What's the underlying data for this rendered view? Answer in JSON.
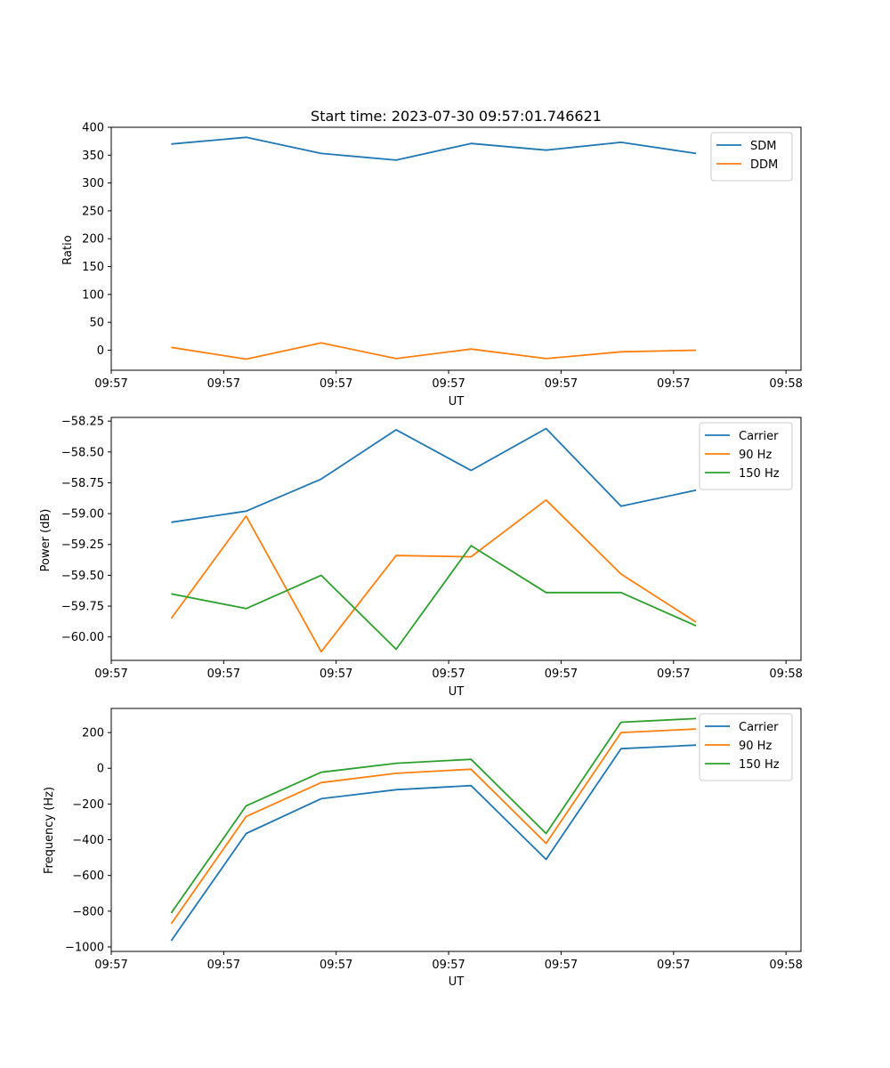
{
  "figure_title": "Start time: 2023-07-30 09:57:01.746621",
  "chart_data": [
    {
      "type": "line",
      "title": "Start time: 2023-07-30 09:57:01.746621",
      "xlabel": "UT",
      "ylabel": "Ratio",
      "x": [
        1,
        2,
        3,
        4,
        5,
        6,
        7,
        8
      ],
      "xlim": [
        0.2,
        9.4
      ],
      "x_ticks": [
        0.2,
        1.7,
        3.2,
        4.7,
        6.2,
        7.7,
        9.2
      ],
      "x_tick_labels": [
        "09:57",
        "09:57",
        "09:57",
        "09:57",
        "09:57",
        "09:57",
        "09:58"
      ],
      "ylim": [
        -36,
        400
      ],
      "y_ticks": [
        0,
        50,
        100,
        150,
        200,
        250,
        300,
        350,
        400
      ],
      "y_tick_labels": [
        "0",
        "50",
        "100",
        "150",
        "200",
        "250",
        "300",
        "350",
        "400"
      ],
      "legend": "top-right",
      "series": [
        {
          "name": "SDM",
          "color": "#1f77b4",
          "values": [
            370,
            382,
            353,
            341,
            371,
            359,
            373,
            353
          ]
        },
        {
          "name": "DDM",
          "color": "#ff7f0e",
          "values": [
            5,
            -16,
            13,
            -15,
            2,
            -15,
            -3,
            0
          ]
        }
      ]
    },
    {
      "type": "line",
      "title": "",
      "xlabel": "UT",
      "ylabel": "Power (dB)",
      "x": [
        1,
        2,
        3,
        4,
        5,
        6,
        7,
        8
      ],
      "xlim": [
        0.2,
        9.4
      ],
      "x_ticks": [
        0.2,
        1.7,
        3.2,
        4.7,
        6.2,
        7.7,
        9.2
      ],
      "x_tick_labels": [
        "09:57",
        "09:57",
        "09:57",
        "09:57",
        "09:57",
        "09:57",
        "09:58"
      ],
      "ylim": [
        -60.19,
        -58.22
      ],
      "y_ticks": [
        -60.0,
        -59.75,
        -59.5,
        -59.25,
        -59.0,
        -58.75,
        -58.5,
        -58.25
      ],
      "y_tick_labels": [
        "−60.00",
        "−59.75",
        "−59.50",
        "−59.25",
        "−59.00",
        "−58.75",
        "−58.50",
        "−58.25"
      ],
      "legend": "top-right",
      "series": [
        {
          "name": "Carrier",
          "color": "#1f77b4",
          "values": [
            -59.07,
            -58.98,
            -58.72,
            -58.32,
            -58.65,
            -58.31,
            -58.94,
            -58.81
          ]
        },
        {
          "name": "90 Hz",
          "color": "#ff7f0e",
          "values": [
            -59.85,
            -59.02,
            -60.12,
            -59.34,
            -59.35,
            -58.89,
            -59.49,
            -59.88
          ]
        },
        {
          "name": "150 Hz",
          "color": "#2ca02c",
          "values": [
            -59.65,
            -59.77,
            -59.5,
            -60.1,
            -59.26,
            -59.64,
            -59.64,
            -59.91
          ]
        }
      ]
    },
    {
      "type": "line",
      "title": "",
      "xlabel": "UT",
      "ylabel": "Frequency (Hz)",
      "x": [
        1,
        2,
        3,
        4,
        5,
        6,
        7,
        8
      ],
      "xlim": [
        0.2,
        9.4
      ],
      "x_ticks": [
        0.2,
        1.7,
        3.2,
        4.7,
        6.2,
        7.7,
        9.2
      ],
      "x_tick_labels": [
        "09:57",
        "09:57",
        "09:57",
        "09:57",
        "09:57",
        "09:57",
        "09:58"
      ],
      "ylim": [
        -1025,
        335
      ],
      "y_ticks": [
        -1000,
        -800,
        -600,
        -400,
        -200,
        0,
        200
      ],
      "y_tick_labels": [
        "−1000",
        "−800",
        "−600",
        "−400",
        "−200",
        "0",
        "200"
      ],
      "legend": "top-right",
      "series": [
        {
          "name": "Carrier",
          "color": "#1f77b4",
          "values": [
            -965,
            -365,
            -170,
            -120,
            -97,
            -510,
            110,
            130
          ]
        },
        {
          "name": "90 Hz",
          "color": "#ff7f0e",
          "values": [
            -870,
            -270,
            -80,
            -28,
            -5,
            -420,
            200,
            220
          ]
        },
        {
          "name": "150 Hz",
          "color": "#2ca02c",
          "values": [
            -810,
            -210,
            -22,
            28,
            50,
            -365,
            258,
            278
          ]
        }
      ]
    }
  ]
}
